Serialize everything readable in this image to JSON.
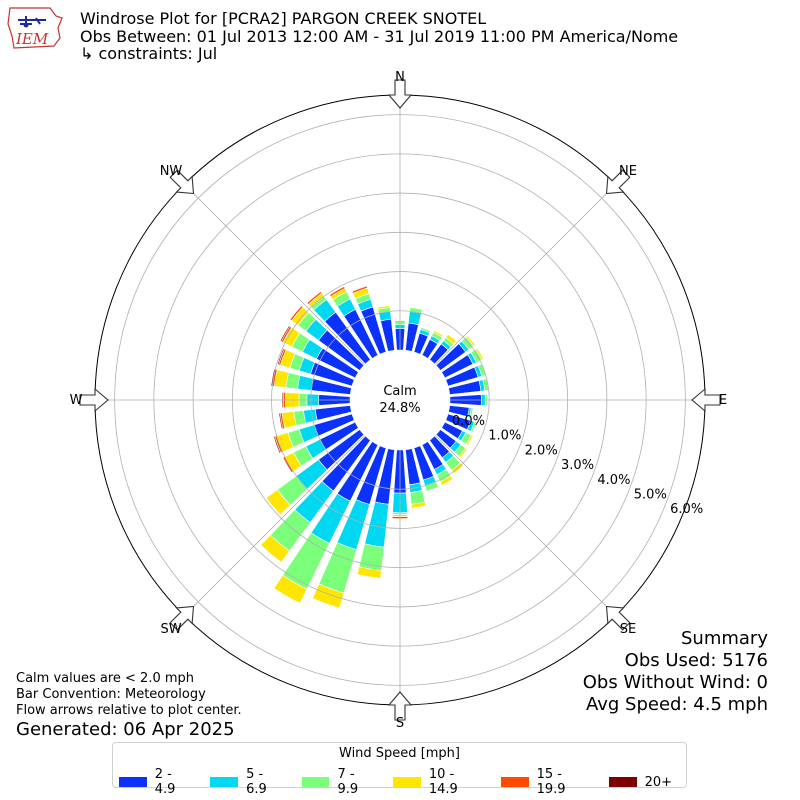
{
  "header": {
    "title": "Windrose Plot for [PCRA2] PARGON CREEK SNOTEL",
    "subtitle": "Obs Between: 01 Jul 2013 12:00 AM - 31 Jul 2019 11:00 PM America/Nome",
    "constraints": "↳ constraints: Jul"
  },
  "logo": {
    "text": "IEM"
  },
  "calm": {
    "label": "Calm",
    "value": "24.8%"
  },
  "directions": {
    "n": "N",
    "ne": "NE",
    "e": "E",
    "se": "SE",
    "s": "S",
    "sw": "SW",
    "w": "W",
    "nw": "NW"
  },
  "notes": [
    "Calm values are < 2.0 mph",
    "Bar Convention: Meteorology",
    "Flow arrows relative to plot center."
  ],
  "generated": "Generated: 06 Apr 2025",
  "summary": {
    "title": "Summary",
    "obs_used": "Obs Used: 5176",
    "obs_without_wind": "Obs Without Wind: 0",
    "avg_speed": "Avg Speed: 4.5 mph"
  },
  "legend": {
    "title": "Wind Speed [mph]",
    "items": [
      {
        "label": "2 - 4.9",
        "color": "#0a32fa"
      },
      {
        "label": "5 - 6.9",
        "color": "#00d7f0"
      },
      {
        "label": "7 - 9.9",
        "color": "#7bff7b"
      },
      {
        "label": "10 - 14.9",
        "color": "#ffe600"
      },
      {
        "label": "15 - 19.9",
        "color": "#ff4a00"
      },
      {
        "label": "20+",
        "color": "#7d0000"
      }
    ]
  },
  "chart_data": {
    "type": "windrose",
    "r_ticks": [
      "0.0%",
      "1.0%",
      "2.0%",
      "3.0%",
      "4.0%",
      "5.0%",
      "6.0%"
    ],
    "r_max": 6.5,
    "directions_deg": [
      0,
      10,
      20,
      30,
      40,
      50,
      60,
      70,
      80,
      90,
      100,
      110,
      120,
      130,
      140,
      150,
      160,
      170,
      180,
      190,
      200,
      210,
      220,
      230,
      240,
      250,
      260,
      270,
      280,
      290,
      300,
      310,
      320,
      330,
      340,
      350
    ],
    "series": [
      {
        "name": "2 - 4.9",
        "values": [
          0.55,
          0.7,
          0.5,
          0.45,
          0.5,
          0.8,
          0.8,
          0.8,
          0.8,
          0.8,
          0.5,
          0.6,
          0.5,
          0.5,
          0.55,
          0.7,
          0.85,
          0.9,
          1.1,
          1.4,
          1.5,
          1.6,
          1.6,
          1.3,
          1.0,
          1.0,
          0.9,
          0.8,
          1.0,
          1.1,
          1.1,
          1.3,
          1.5,
          1.3,
          1.2,
          0.8
        ]
      },
      {
        "name": "5 - 6.9",
        "values": [
          0.1,
          0.3,
          0.1,
          0.1,
          0.1,
          0.1,
          0.1,
          0.1,
          0.1,
          0.1,
          0.05,
          0.1,
          0.1,
          0.15,
          0.15,
          0.15,
          0.15,
          0.2,
          0.5,
          1.1,
          1.2,
          1.2,
          1.0,
          0.7,
          0.4,
          0.4,
          0.3,
          0.3,
          0.35,
          0.3,
          0.4,
          0.4,
          0.4,
          0.3,
          0.2,
          0.2
        ]
      },
      {
        "name": "7 - 9.9",
        "values": [
          0.1,
          0.1,
          0.05,
          0.1,
          0.1,
          0.15,
          0.15,
          0.1,
          0.1,
          0.05,
          0.05,
          0.05,
          0.15,
          0.15,
          0.25,
          0.2,
          0.15,
          0.3,
          0.05,
          0.6,
          1.15,
          1.3,
          0.9,
          0.6,
          0.35,
          0.3,
          0.25,
          0.2,
          0.3,
          0.25,
          0.3,
          0.25,
          0.1,
          0.2,
          0.15,
          0.1
        ]
      },
      {
        "name": "10 - 14.9",
        "values": [
          0.0,
          0.0,
          0.0,
          0.05,
          0.1,
          0.05,
          0.05,
          0.0,
          0.0,
          0.0,
          0.0,
          0.0,
          0.05,
          0.05,
          0.1,
          0.1,
          0.0,
          0.1,
          0.05,
          0.2,
          0.4,
          0.4,
          0.35,
          0.35,
          0.25,
          0.3,
          0.3,
          0.35,
          0.3,
          0.25,
          0.25,
          0.2,
          0.1,
          0.1,
          0.15,
          0.05
        ]
      },
      {
        "name": "15 - 19.9",
        "values": [
          0.0,
          0.0,
          0.0,
          0.0,
          0.0,
          0.0,
          0.0,
          0.0,
          0.0,
          0.0,
          0.0,
          0.0,
          0.0,
          0.0,
          0.0,
          0.0,
          0.0,
          0.0,
          0.05,
          0.0,
          0.0,
          0.0,
          0.0,
          0.0,
          0.05,
          0.05,
          0.05,
          0.05,
          0.05,
          0.05,
          0.05,
          0.05,
          0.05,
          0.05,
          0.05,
          0.0
        ]
      },
      {
        "name": "20+",
        "values": [
          0.0,
          0.0,
          0.0,
          0.0,
          0.0,
          0.0,
          0.0,
          0.0,
          0.0,
          0.0,
          0.0,
          0.0,
          0.0,
          0.0,
          0.0,
          0.0,
          0.0,
          0.0,
          0.0,
          0.0,
          0.0,
          0.0,
          0.0,
          0.0,
          0.0,
          0.03,
          0.03,
          0.03,
          0.03,
          0.03,
          0.03,
          0.0,
          0.0,
          0.0,
          0.0,
          0.0
        ]
      }
    ]
  }
}
